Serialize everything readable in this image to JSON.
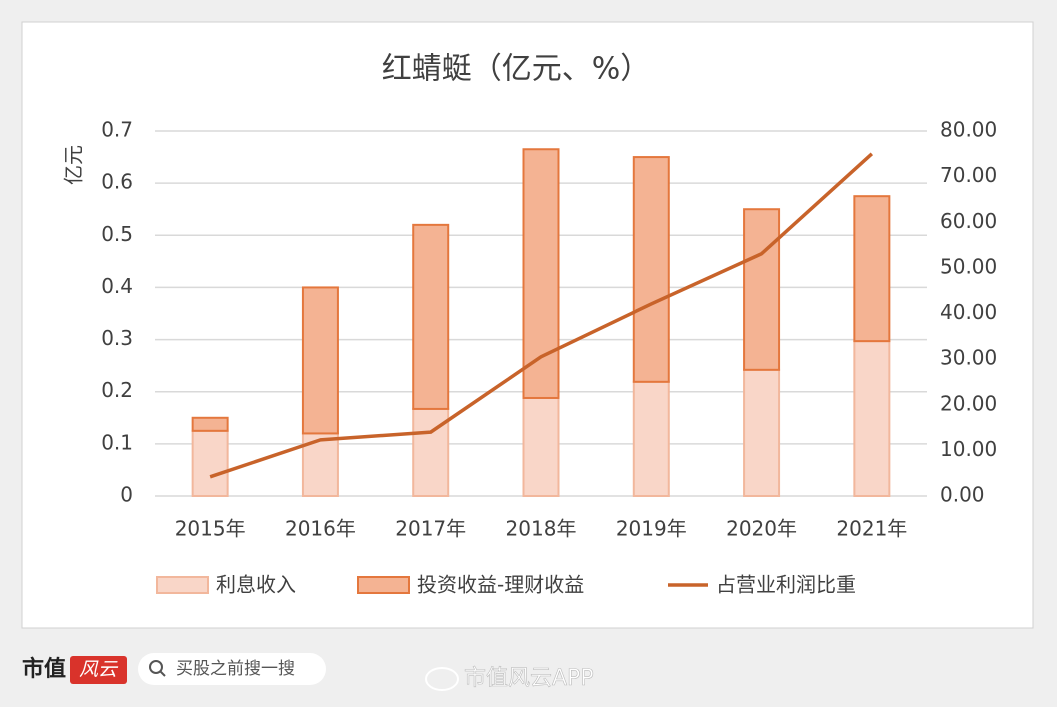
{
  "chart_data": {
    "type": "bar",
    "stacked": true,
    "title": "红蜻蜓（亿元、%）",
    "y_label": "亿元",
    "categories": [
      "2015年",
      "2016年",
      "2017年",
      "2018年",
      "2019年",
      "2020年",
      "2021年"
    ],
    "series": [
      {
        "name": "利息收入",
        "color": "#f9d6c8",
        "stroke": "#f2b79c",
        "values": [
          0.125,
          0.12,
          0.167,
          0.188,
          0.219,
          0.242,
          0.297
        ]
      },
      {
        "name": "投资收益-理财收益",
        "color": "#f4b393",
        "stroke": "#e4773d",
        "values": [
          0.025,
          0.28,
          0.353,
          0.477,
          0.431,
          0.308,
          0.278
        ]
      },
      {
        "name": "占营业利润比重",
        "type": "line",
        "axis": "y2",
        "color": "#c8632a",
        "values": [
          4.2,
          12.3,
          14.0,
          30.5,
          42.1,
          53.1,
          75.0
        ]
      }
    ],
    "ylim": [
      0,
      0.7
    ],
    "yticks": [
      0,
      0.1,
      0.2,
      0.3,
      0.4,
      0.5,
      0.6,
      0.7
    ],
    "y2lim": [
      0,
      80
    ],
    "y2ticks": [
      {
        "value": 0,
        "label": "0.00"
      },
      {
        "value": 10,
        "label": "10.00"
      },
      {
        "value": 20,
        "label": "20.00"
      },
      {
        "value": 30,
        "label": "30.00"
      },
      {
        "value": 40,
        "label": "40.00"
      },
      {
        "value": 50,
        "label": "50.00"
      },
      {
        "value": 60,
        "label": "60.00"
      },
      {
        "value": 70,
        "label": "70.00"
      },
      {
        "value": 80,
        "label": "80.00"
      }
    ],
    "grid": true,
    "legend": "bottom"
  },
  "footer": {
    "brand": "市值",
    "brand_logo": "风云",
    "search": "买股之前搜一搜",
    "weibo": "市值风云APP"
  }
}
